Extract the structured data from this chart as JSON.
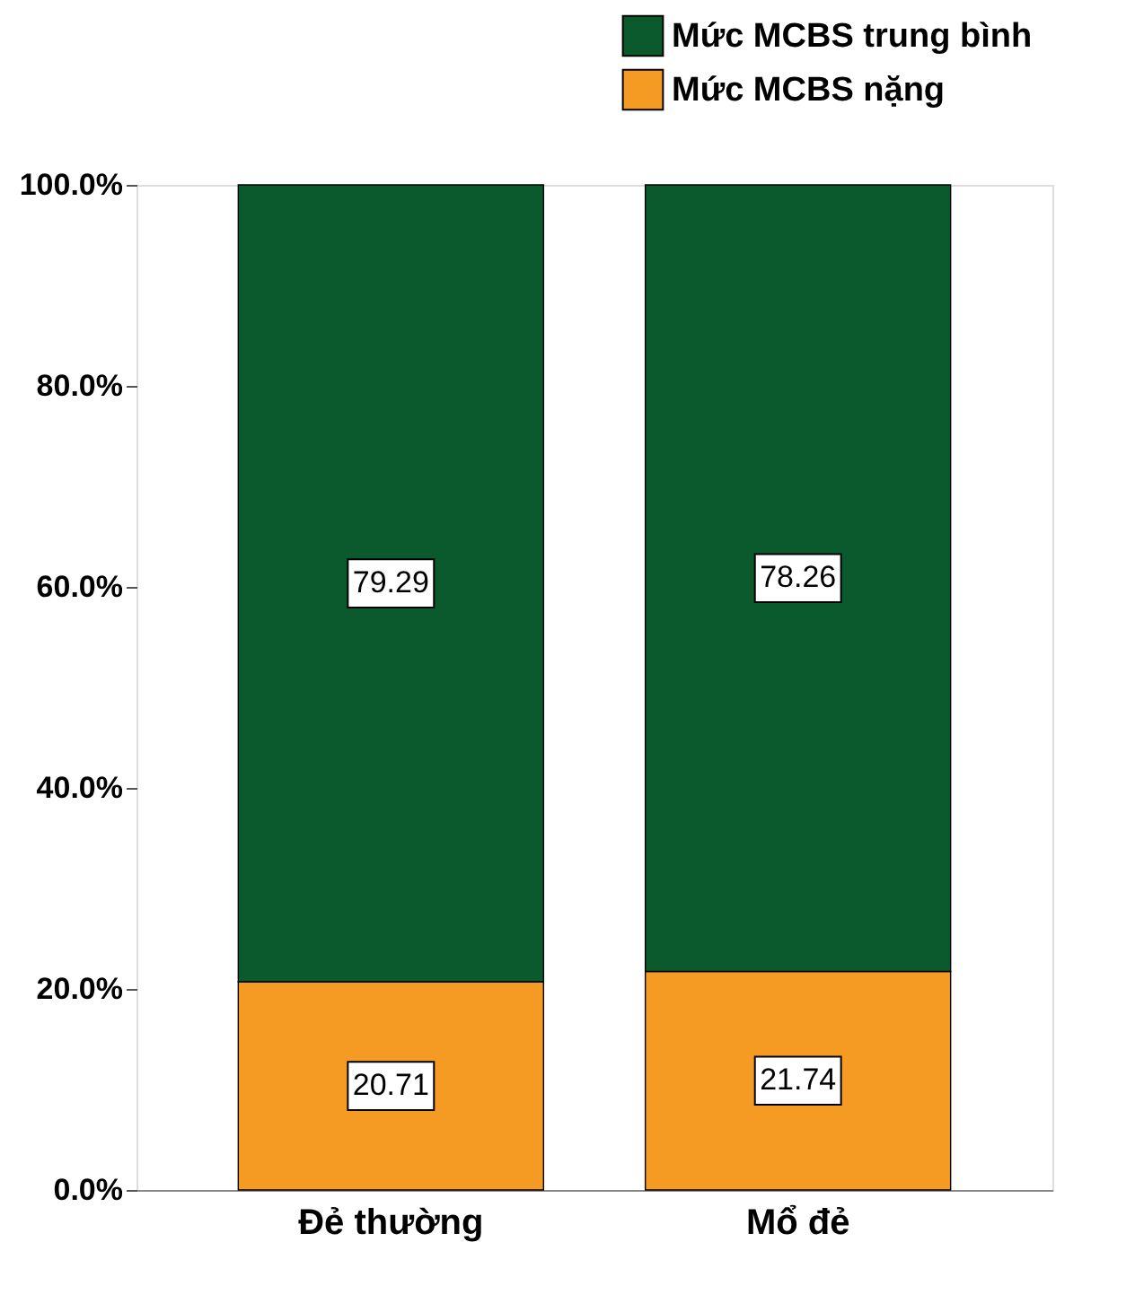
{
  "chart_data": {
    "type": "bar",
    "stacked": true,
    "categories": [
      "Đẻ thường",
      "Mổ đẻ"
    ],
    "series": [
      {
        "name": "Mức MCBS nặng",
        "color": "#f59a23",
        "values": [
          20.71,
          21.74
        ]
      },
      {
        "name": "Mức MCBS trung bình",
        "color": "#0b5a2e",
        "values": [
          79.29,
          78.26
        ]
      }
    ],
    "ylim": [
      0,
      100
    ],
    "yticks": [
      {
        "value": 0,
        "label": "0.0%"
      },
      {
        "value": 20,
        "label": "20.0%"
      },
      {
        "value": 40,
        "label": "40.0%"
      },
      {
        "value": 60,
        "label": "60.0%"
      },
      {
        "value": 80,
        "label": "80.0%"
      },
      {
        "value": 100,
        "label": "100.0%"
      }
    ],
    "data_labels": true,
    "legend": "top right",
    "grid": false
  }
}
